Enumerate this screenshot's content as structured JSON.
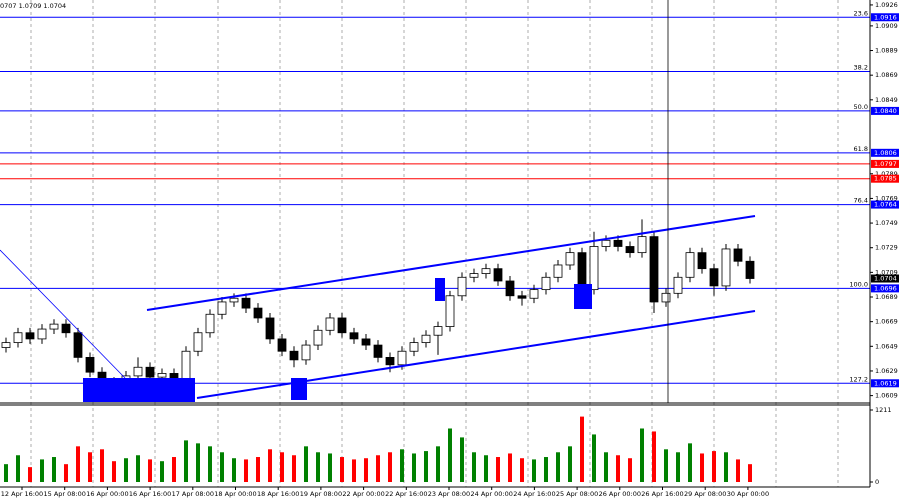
{
  "chart_data": {
    "type": "candlestick",
    "title": "0707 1.0709 1.0704",
    "ylim": [
      1.0603,
      1.093
    ],
    "yticks": [
      1.0926,
      1.0909,
      1.0889,
      1.0869,
      1.0849,
      1.0789,
      1.0769,
      1.0749,
      1.0729,
      1.0709,
      1.0689,
      1.0669,
      1.0649,
      1.0629,
      1.0609
    ],
    "x_labels": [
      "12 Apr 16:00",
      "15 Apr 08:00",
      "16 Apr 00:00",
      "16 Apr 16:00",
      "17 Apr 08:00",
      "18 Apr 00:00",
      "18 Apr 16:00",
      "19 Apr 08:00",
      "22 Apr 00:00",
      "22 Apr 16:00",
      "23 Apr 08:00",
      "24 Apr 00:00",
      "24 Apr 16:00",
      "25 Apr 08:00",
      "26 Apr 00:00",
      "26 Apr 16:00",
      "29 Apr 08:00",
      "30 Apr 00:00"
    ],
    "levels": [
      {
        "value": 1.0916,
        "label": "1.0916",
        "fib": "23.6",
        "color": "#0000ff"
      },
      {
        "value": 1.0872,
        "fib": "38.2",
        "color": "#0000ff"
      },
      {
        "value": 1.084,
        "label": "1.0840",
        "fib": "50.0",
        "color": "#0000ff"
      },
      {
        "value": 1.0806,
        "label": "1.0806",
        "fib": "61.8",
        "color": "#0000ff"
      },
      {
        "value": 1.0797,
        "label": "1.0797",
        "color": "#ff0000"
      },
      {
        "value": 1.0785,
        "label": "1.0785",
        "color": "#ff0000"
      },
      {
        "value": 1.0764,
        "label": "1.0764",
        "fib": "76.4",
        "color": "#0000ff"
      },
      {
        "value": 1.0696,
        "label": "1.0696",
        "fib": "100.0",
        "color": "#0000ff"
      },
      {
        "value": 1.0619,
        "label": "1.0619",
        "fib": "127.2",
        "color": "#0000ff"
      }
    ],
    "current_price": 1.0704,
    "up_color": "#008000",
    "down_color": "#ff0000",
    "open": [
      1.0648,
      1.0652,
      1.066,
      1.0655,
      1.0663,
      1.0667,
      1.066,
      1.064,
      1.0628,
      1.062,
      1.0618,
      1.0625,
      1.0632,
      1.0624,
      1.0627,
      1.0622,
      1.0645,
      1.066,
      1.0675,
      1.0685,
      1.0688,
      1.068,
      1.0672,
      1.0655,
      1.0645,
      1.0638,
      1.065,
      1.0662,
      1.0672,
      1.066,
      1.0655,
      1.065,
      1.064,
      1.0634,
      1.0645,
      1.0652,
      1.0658,
      1.0665,
      1.069,
      1.0705,
      1.0708,
      1.0712,
      1.0702,
      1.069,
      1.0688,
      1.0695,
      1.0705,
      1.0715,
      1.0725,
      1.0695,
      1.073,
      1.0735,
      1.073,
      1.0725,
      1.0738,
      1.0685,
      1.0692,
      1.0705,
      1.0725,
      1.0712,
      1.0698,
      1.0728,
      1.0718
    ],
    "high": [
      1.0656,
      1.0664,
      1.0664,
      1.0667,
      1.0671,
      1.0671,
      1.0664,
      1.0644,
      1.0632,
      1.0624,
      1.0629,
      1.064,
      1.0636,
      1.0631,
      1.0631,
      1.0649,
      1.0664,
      1.0679,
      1.0689,
      1.0692,
      1.0692,
      1.0684,
      1.0676,
      1.0659,
      1.0649,
      1.0654,
      1.0666,
      1.0676,
      1.0676,
      1.0664,
      1.0659,
      1.0654,
      1.0644,
      1.0649,
      1.0656,
      1.0662,
      1.0669,
      1.0694,
      1.0709,
      1.0712,
      1.0716,
      1.0716,
      1.0706,
      1.0694,
      1.0699,
      1.0709,
      1.0719,
      1.0729,
      1.0729,
      1.0742,
      1.0739,
      1.0739,
      1.0734,
      1.0752,
      1.0742,
      1.0696,
      1.0709,
      1.0729,
      1.0729,
      1.0716,
      1.0732,
      1.0732,
      1.0722
    ],
    "low": [
      1.0644,
      1.0648,
      1.0651,
      1.0651,
      1.0659,
      1.0656,
      1.0636,
      1.0624,
      1.0612,
      1.0614,
      1.0614,
      1.0621,
      1.062,
      1.062,
      1.0618,
      1.0618,
      1.0641,
      1.0656,
      1.0671,
      1.0681,
      1.0676,
      1.0668,
      1.0651,
      1.0641,
      1.0632,
      1.0634,
      1.0646,
      1.0658,
      1.0656,
      1.0651,
      1.0646,
      1.0636,
      1.0628,
      1.063,
      1.0641,
      1.0648,
      1.0642,
      1.0661,
      1.0686,
      1.0701,
      1.0704,
      1.0698,
      1.0686,
      1.0682,
      1.0684,
      1.0691,
      1.0701,
      1.0711,
      1.0685,
      1.0691,
      1.0726,
      1.0726,
      1.0721,
      1.0721,
      1.0676,
      1.0681,
      1.0688,
      1.0701,
      1.0708,
      1.069,
      1.0694,
      1.0714,
      1.07
    ],
    "close": [
      1.0652,
      1.066,
      1.0655,
      1.0663,
      1.0667,
      1.066,
      1.064,
      1.0628,
      1.062,
      1.0618,
      1.0625,
      1.0632,
      1.0624,
      1.0627,
      1.0622,
      1.0645,
      1.066,
      1.0675,
      1.0685,
      1.0688,
      1.068,
      1.0672,
      1.0655,
      1.0645,
      1.0638,
      1.065,
      1.0662,
      1.0672,
      1.066,
      1.0655,
      1.065,
      1.064,
      1.0634,
      1.0645,
      1.0652,
      1.0658,
      1.0665,
      1.069,
      1.0705,
      1.0708,
      1.0712,
      1.0702,
      1.069,
      1.0688,
      1.0695,
      1.0705,
      1.0715,
      1.0725,
      1.0695,
      1.073,
      1.0735,
      1.073,
      1.0725,
      1.0738,
      1.0685,
      1.0692,
      1.0705,
      1.0725,
      1.0712,
      1.0698,
      1.0728,
      1.0718,
      1.0704
    ],
    "volume": [
      300,
      450,
      250,
      380,
      420,
      300,
      600,
      500,
      550,
      350,
      400,
      450,
      380,
      350,
      420,
      700,
      650,
      600,
      500,
      400,
      380,
      420,
      550,
      500,
      450,
      600,
      500,
      480,
      420,
      380,
      400,
      450,
      500,
      550,
      480,
      520,
      600,
      900,
      750,
      500,
      450,
      420,
      480,
      400,
      380,
      420,
      500,
      600,
      1100,
      800,
      500,
      450,
      400,
      900,
      850,
      550,
      500,
      650,
      480,
      520,
      500,
      380,
      300
    ],
    "volume_ylim": [
      0,
      1211
    ],
    "volume_yticks": [
      1211,
      0
    ]
  }
}
